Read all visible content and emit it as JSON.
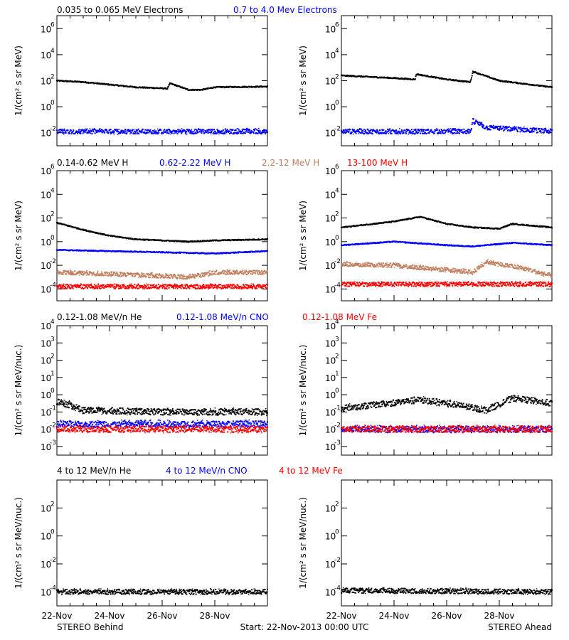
{
  "panels": [
    {
      "legend": [
        {
          "text": "0.035 to 0.065 MeV Electrons",
          "color": "#000000"
        },
        {
          "text": "0.7 to 4.0 Mev Electrons",
          "color": "#0000ff"
        }
      ],
      "ylabel": "1/(cm² s sr MeV)",
      "yticks": [
        {
          "exp": 6,
          "label": "10"
        },
        {
          "exp": 4,
          "label": "10"
        },
        {
          "exp": 2,
          "label": "10"
        },
        {
          "exp": 0,
          "label": "10"
        },
        {
          "exp": -2,
          "label": "10"
        }
      ],
      "ylim_log10": [
        -3,
        7
      ]
    },
    {
      "legend": [
        {
          "text": "0.14-0.62 MeV H",
          "color": "#000000"
        },
        {
          "text": "0.62-2.22 MeV H",
          "color": "#0000ff"
        },
        {
          "text": "2.2-12 MeV H",
          "color": "#c08060"
        },
        {
          "text": "13-100 MeV H",
          "color": "#ff0000"
        }
      ],
      "ylabel": "1/(cm² s sr MeV)",
      "yticks": [
        {
          "exp": 6,
          "label": "10"
        },
        {
          "exp": 4,
          "label": "10"
        },
        {
          "exp": 2,
          "label": "10"
        },
        {
          "exp": 0,
          "label": "10"
        },
        {
          "exp": -2,
          "label": "10"
        },
        {
          "exp": -4,
          "label": "10"
        }
      ],
      "ylim_log10": [
        -5,
        6
      ]
    },
    {
      "legend": [
        {
          "text": "0.12-1.08 MeV/n He",
          "color": "#000000"
        },
        {
          "text": "0.12-1.08 MeV/n CNO",
          "color": "#0000ff"
        },
        {
          "text": "0.12-1.08 MeV Fe",
          "color": "#ff0000"
        }
      ],
      "ylabel": "1/(cm² s sr MeV/nuc.)",
      "yticks": [
        {
          "exp": 4,
          "label": "10"
        },
        {
          "exp": 3,
          "label": "10"
        },
        {
          "exp": 2,
          "label": "10"
        },
        {
          "exp": 1,
          "label": "10"
        },
        {
          "exp": 0,
          "label": "10"
        },
        {
          "exp": -1,
          "label": "10"
        },
        {
          "exp": -2,
          "label": "10"
        },
        {
          "exp": -3,
          "label": "10"
        }
      ],
      "ylim_log10": [
        -3.5,
        4
      ]
    },
    {
      "legend": [
        {
          "text": "4 to 12 MeV/n He",
          "color": "#000000"
        },
        {
          "text": "4 to 12 MeV/n CNO",
          "color": "#0000ff"
        },
        {
          "text": "4 to 12 MeV Fe",
          "color": "#ff0000"
        }
      ],
      "ylabel": "1/(cm² s sr MeV/nuc.)",
      "yticks": [
        {
          "exp": 2,
          "label": "10"
        },
        {
          "exp": 0,
          "label": "10"
        },
        {
          "exp": -2,
          "label": "10"
        },
        {
          "exp": -4,
          "label": "10"
        }
      ],
      "ylim_log10": [
        -5,
        4
      ]
    }
  ],
  "xticks": [
    "22-Nov",
    "24-Nov",
    "26-Nov",
    "28-Nov"
  ],
  "footer": {
    "left": "STEREO Behind",
    "center": "Start: 22-Nov-2013 00:00 UTC",
    "right": "STEREO Ahead"
  },
  "chart_data": [
    {
      "type": "scatter",
      "title": "STEREO Behind",
      "x_unit": "day since 22-Nov-2013 00:00 UTC",
      "xlim": [
        0,
        8
      ],
      "log_y": true,
      "series": [
        {
          "name": "0.035 to 0.065 MeV Electrons",
          "color": "#000000",
          "log10_y": [
            [
              0,
              2.0
            ],
            [
              1,
              1.9
            ],
            [
              2,
              1.7
            ],
            [
              3,
              1.5
            ],
            [
              4.2,
              1.4
            ],
            [
              4.3,
              1.8
            ],
            [
              5,
              1.3
            ],
            [
              5.5,
              1.3
            ],
            [
              6,
              1.5
            ],
            [
              8,
              1.55
            ]
          ]
        },
        {
          "name": "0.7 to 4.0 Mev Electrons",
          "color": "#0000ff",
          "log10_y": [
            [
              0,
              -1.9
            ],
            [
              8,
              -1.9
            ]
          ]
        },
        {
          "name": "0.14-0.62 MeV H",
          "color": "#000000",
          "log10_y": [
            [
              0,
              1.6
            ],
            [
              1,
              1.0
            ],
            [
              2,
              0.5
            ],
            [
              3,
              0.2
            ],
            [
              4,
              0.1
            ],
            [
              5,
              0.0
            ],
            [
              6,
              0.1
            ],
            [
              8,
              0.2
            ]
          ]
        },
        {
          "name": "0.62-2.22 MeV H",
          "color": "#0000ff",
          "log10_y": [
            [
              0,
              -0.7
            ],
            [
              2,
              -0.8
            ],
            [
              4,
              -0.9
            ],
            [
              6,
              -1.0
            ],
            [
              8,
              -0.8
            ]
          ]
        },
        {
          "name": "2.2-12 MeV H",
          "color": "#c08060",
          "log10_y": [
            [
              0,
              -2.6
            ],
            [
              3,
              -2.8
            ],
            [
              5,
              -3.0
            ],
            [
              6,
              -2.6
            ],
            [
              8,
              -2.6
            ]
          ]
        },
        {
          "name": "13-100 MeV H",
          "color": "#ff0000",
          "log10_y": [
            [
              0,
              -3.8
            ],
            [
              8,
              -3.8
            ]
          ]
        },
        {
          "name": "0.12-1.08 MeV/n He",
          "color": "#000000",
          "log10_y": [
            [
              0,
              -0.4
            ],
            [
              0.5,
              -0.6
            ],
            [
              1,
              -0.9
            ],
            [
              4,
              -1.0
            ],
            [
              8,
              -1.0
            ]
          ]
        },
        {
          "name": "0.12-1.08 MeV/n CNO",
          "color": "#0000ff",
          "log10_y": [
            [
              0,
              -1.7
            ],
            [
              8,
              -1.7
            ]
          ]
        },
        {
          "name": "0.12-1.08 MeV Fe",
          "color": "#ff0000",
          "log10_y": [
            [
              0,
              -2.0
            ],
            [
              8,
              -2.0
            ]
          ]
        },
        {
          "name": "4 to 12 MeV/n He",
          "color": "#000000",
          "log10_y": [
            [
              0,
              -4.0
            ],
            [
              8,
              -4.0
            ]
          ]
        }
      ]
    },
    {
      "type": "scatter",
      "title": "STEREO Ahead",
      "x_unit": "day since 22-Nov-2013 00:00 UTC",
      "xlim": [
        0,
        8
      ],
      "log_y": true,
      "series": [
        {
          "name": "0.035 to 0.065 MeV Electrons",
          "color": "#000000",
          "log10_y": [
            [
              0,
              2.4
            ],
            [
              2,
              2.2
            ],
            [
              2.8,
              2.1
            ],
            [
              2.85,
              2.5
            ],
            [
              4,
              2.1
            ],
            [
              4.9,
              1.9
            ],
            [
              5,
              2.7
            ],
            [
              6,
              2.0
            ],
            [
              8,
              1.5
            ]
          ]
        },
        {
          "name": "0.7 to 4.0 Mev Electrons",
          "color": "#0000ff",
          "log10_y": [
            [
              0,
              -1.9
            ],
            [
              4.9,
              -1.9
            ],
            [
              5.0,
              -1.1
            ],
            [
              5.5,
              -1.6
            ],
            [
              8,
              -1.9
            ]
          ]
        },
        {
          "name": "0.14-0.62 MeV H",
          "color": "#000000",
          "log10_y": [
            [
              0,
              1.2
            ],
            [
              2,
              1.7
            ],
            [
              3,
              2.1
            ],
            [
              4,
              1.5
            ],
            [
              5,
              1.2
            ],
            [
              6,
              1.1
            ],
            [
              6.5,
              1.5
            ],
            [
              8,
              1.2
            ]
          ]
        },
        {
          "name": "0.62-2.22 MeV H",
          "color": "#0000ff",
          "log10_y": [
            [
              0,
              -0.3
            ],
            [
              2,
              0.0
            ],
            [
              4,
              -0.3
            ],
            [
              5,
              -0.4
            ],
            [
              6.5,
              -0.1
            ],
            [
              8,
              -0.3
            ]
          ]
        },
        {
          "name": "2.2-12 MeV H",
          "color": "#c08060",
          "log10_y": [
            [
              0,
              -1.9
            ],
            [
              2,
              -2.0
            ],
            [
              4,
              -2.4
            ],
            [
              5,
              -2.6
            ],
            [
              5.5,
              -1.7
            ],
            [
              7,
              -2.3
            ],
            [
              8,
              -2.9
            ]
          ]
        },
        {
          "name": "13-100 MeV H",
          "color": "#ff0000",
          "log10_y": [
            [
              0,
              -3.6
            ],
            [
              8,
              -3.6
            ]
          ]
        },
        {
          "name": "0.12-1.08 MeV/n He",
          "color": "#000000",
          "log10_y": [
            [
              0,
              -0.8
            ],
            [
              3,
              -0.3
            ],
            [
              4,
              -0.5
            ],
            [
              5.5,
              -0.9
            ],
            [
              6.5,
              -0.2
            ],
            [
              8,
              -0.5
            ]
          ]
        },
        {
          "name": "0.12-1.08 MeV/n CNO",
          "color": "#0000ff",
          "log10_y": [
            [
              0,
              -2.0
            ],
            [
              8,
              -2.0
            ]
          ]
        },
        {
          "name": "0.12-1.08 MeV Fe",
          "color": "#ff0000",
          "log10_y": [
            [
              0,
              -2.0
            ],
            [
              8,
              -2.0
            ]
          ]
        },
        {
          "name": "4 to 12 MeV/n He",
          "color": "#000000",
          "log10_y": [
            [
              0,
              -3.9
            ],
            [
              8,
              -4.0
            ]
          ]
        }
      ]
    }
  ]
}
